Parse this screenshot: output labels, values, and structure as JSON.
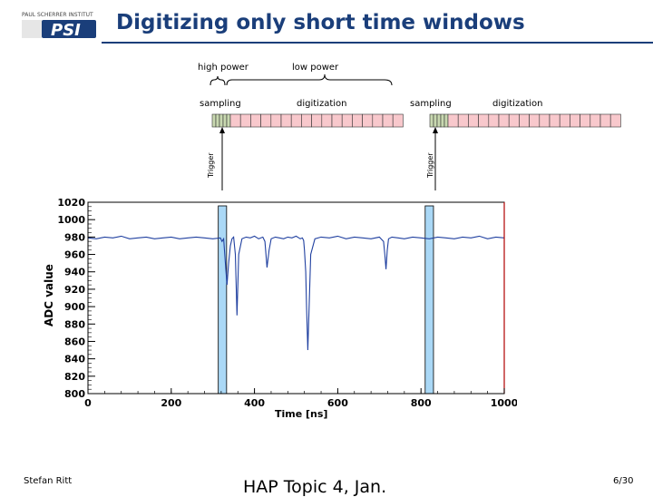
{
  "slide": {
    "title": "Digitizing only short time windows",
    "footer_left": "Stefan Ritt",
    "footer_center": "HAP Topic 4, Jan.",
    "page_number": "6/30"
  },
  "logo": {
    "text_top": "PAUL SCHERRER INSTITUT",
    "text_main": "PSI",
    "accent_color": "#1a3e7a"
  },
  "timing_diagram": {
    "brace_labels": [
      "high power",
      "low power"
    ],
    "segment_labels": [
      "sampling",
      "digitization",
      "sampling",
      "digitization"
    ],
    "trigger_label": "Trigger",
    "colors": {
      "sampling": "#c8d8b0",
      "digitization": "#f8c8cc"
    }
  },
  "chart_data": {
    "type": "line",
    "xlabel": "Time [ns]",
    "ylabel": "ADC value",
    "xlim": [
      0,
      1000
    ],
    "ylim": [
      800,
      1020
    ],
    "xticks": [
      0,
      200,
      400,
      600,
      800,
      1000
    ],
    "yticks": [
      800,
      820,
      840,
      860,
      880,
      900,
      920,
      940,
      960,
      980,
      1000,
      1020
    ],
    "grid": false,
    "series": [
      {
        "color": "#2040a0",
        "baseline": 979,
        "x": [
          0,
          20,
          40,
          60,
          80,
          100,
          120,
          140,
          160,
          180,
          200,
          220,
          240,
          260,
          280,
          300,
          318,
          322,
          326,
          330,
          334,
          338,
          342,
          346,
          350,
          354,
          358,
          362,
          370,
          380,
          390,
          400,
          410,
          420,
          425,
          430,
          435,
          440,
          450,
          460,
          470,
          480,
          490,
          500,
          510,
          515,
          518,
          520,
          523,
          525,
          528,
          535,
          545,
          560,
          580,
          600,
          620,
          640,
          660,
          680,
          700,
          710,
          713,
          716,
          719,
          722,
          730,
          745,
          760,
          780,
          800,
          820,
          840,
          860,
          880,
          900,
          920,
          940,
          960,
          980,
          1000
        ],
        "y": [
          979,
          978,
          980,
          979,
          981,
          978,
          979,
          980,
          978,
          979,
          980,
          978,
          979,
          980,
          979,
          978,
          979,
          975,
          978,
          950,
          925,
          950,
          970,
          978,
          980,
          960,
          890,
          960,
          978,
          980,
          979,
          981,
          978,
          980,
          975,
          945,
          965,
          978,
          980,
          979,
          978,
          980,
          979,
          981,
          978,
          979,
          976,
          965,
          940,
          900,
          850,
          960,
          978,
          980,
          979,
          981,
          978,
          980,
          979,
          978,
          980,
          975,
          960,
          943,
          965,
          978,
          980,
          979,
          978,
          980,
          979,
          978,
          980,
          979,
          978,
          980,
          979,
          981,
          978,
          980,
          979
        ]
      }
    ],
    "highlight_windows": [
      {
        "label": "sampling",
        "x_start": 313,
        "x_end": 333
      },
      {
        "label": "sampling",
        "x_start": 810,
        "x_end": 830
      }
    ]
  }
}
